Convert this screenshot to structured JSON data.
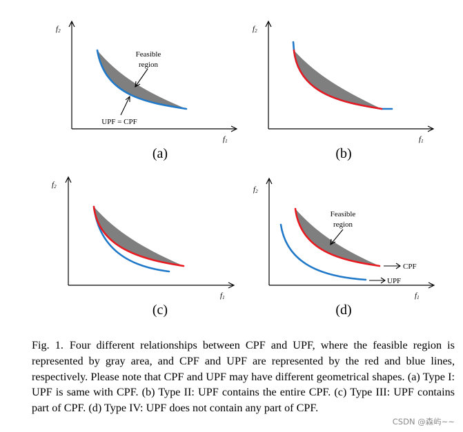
{
  "figure": {
    "axis_labels": {
      "y_main": "f",
      "y_sub": "2",
      "x_main": "f",
      "x_sub": "1"
    },
    "panels": [
      {
        "label": "(a)",
        "annotations": {
          "feasible_line1": "Feasible",
          "feasible_line2": "region",
          "upf_eq_cpf": "UPF = CPF"
        }
      },
      {
        "label": "(b)"
      },
      {
        "label": "(c)"
      },
      {
        "label": "(d)",
        "annotations": {
          "feasible_line1": "Feasible",
          "feasible_line2": "region",
          "cpf": "CPF",
          "upf": "UPF"
        }
      }
    ],
    "colors": {
      "feasible_region": "#7f7f7f",
      "cpf": "#e8191f",
      "upf": "#1f78c8"
    }
  },
  "caption": {
    "id": "Fig. 1.",
    "text": "Four different relationships between CPF and UPF, where the feasible region is represented by gray area, and CPF and UPF are represented by the red and blue lines, respectively. Please note that CPF and UPF may have different geometrical shapes. (a) Type I: UPF is same with CPF. (b) Type II: UPF contains the entire CPF. (c) Type III: UPF contains part of CPF. (d) Type IV: UPF does not contain any part of CPF."
  },
  "watermark": "CSDN @森屿~~"
}
